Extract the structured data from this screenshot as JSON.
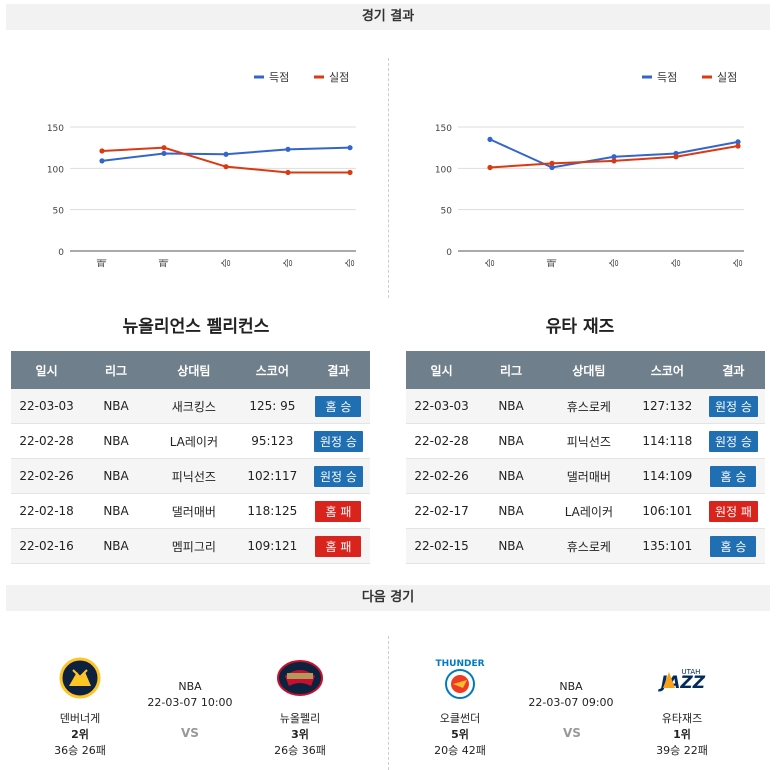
{
  "sections": {
    "results_title": "경기 결과",
    "next_title": "다음 경기"
  },
  "legend": {
    "scored": "득점",
    "conceded": "실점"
  },
  "colors": {
    "scored": "#3366cc",
    "conceded": "#dc3912",
    "win": "#1f6fb2",
    "loss": "#d9231d"
  },
  "chart_data": [
    {
      "type": "line",
      "categories": [
        "패",
        "패",
        "승",
        "승",
        "승"
      ],
      "series": [
        {
          "name": "득점",
          "values": [
            109,
            118,
            117,
            123,
            125
          ]
        },
        {
          "name": "실점",
          "values": [
            121,
            125,
            102,
            95,
            95
          ]
        }
      ],
      "y_ticks": [
        0,
        50,
        100,
        150
      ],
      "ylim": [
        0,
        150
      ],
      "grid": true,
      "legend": "top-right"
    },
    {
      "type": "line",
      "categories": [
        "승",
        "패",
        "승",
        "승",
        "승"
      ],
      "series": [
        {
          "name": "득점",
          "values": [
            135,
            101,
            114,
            118,
            132
          ]
        },
        {
          "name": "실점",
          "values": [
            101,
            106,
            109,
            114,
            127
          ]
        }
      ],
      "y_ticks": [
        0,
        50,
        100,
        150
      ],
      "ylim": [
        0,
        150
      ],
      "grid": true,
      "legend": "top-right"
    }
  ],
  "table_headers": [
    "일시",
    "리그",
    "상대팀",
    "스코어",
    "결과"
  ],
  "teams": [
    {
      "name": "뉴올리언스 펠리컨스",
      "games": [
        {
          "date": "22-03-03",
          "league": "NBA",
          "opponent": "새크킹스",
          "score": "125: 95",
          "result": "홈 승",
          "kind": "win"
        },
        {
          "date": "22-02-28",
          "league": "NBA",
          "opponent": "LA레이커",
          "score": "95:123",
          "result": "원정 승",
          "kind": "win"
        },
        {
          "date": "22-02-26",
          "league": "NBA",
          "opponent": "피닉선즈",
          "score": "102:117",
          "result": "원정 승",
          "kind": "win"
        },
        {
          "date": "22-02-18",
          "league": "NBA",
          "opponent": "댈러매버",
          "score": "118:125",
          "result": "홈 패",
          "kind": "loss"
        },
        {
          "date": "22-02-16",
          "league": "NBA",
          "opponent": "멤피그리",
          "score": "109:121",
          "result": "홈 패",
          "kind": "loss"
        }
      ]
    },
    {
      "name": "유타 재즈",
      "games": [
        {
          "date": "22-03-03",
          "league": "NBA",
          "opponent": "휴스로케",
          "score": "127:132",
          "result": "원정 승",
          "kind": "win"
        },
        {
          "date": "22-02-28",
          "league": "NBA",
          "opponent": "피닉선즈",
          "score": "114:118",
          "result": "원정 승",
          "kind": "win"
        },
        {
          "date": "22-02-26",
          "league": "NBA",
          "opponent": "댈러매버",
          "score": "114:109",
          "result": "홈 승",
          "kind": "win"
        },
        {
          "date": "22-02-17",
          "league": "NBA",
          "opponent": "LA레이커",
          "score": "106:101",
          "result": "원정 패",
          "kind": "loss"
        },
        {
          "date": "22-02-15",
          "league": "NBA",
          "opponent": "휴스로케",
          "score": "135:101",
          "result": "홈 승",
          "kind": "win"
        }
      ]
    }
  ],
  "next_games": [
    {
      "league": "NBA",
      "datetime": "22-03-07 10:00",
      "vs": "VS",
      "home": {
        "name": "덴버너게",
        "rank": "2위",
        "record": "36승 26패",
        "logo": "nuggets-logo"
      },
      "away": {
        "name": "뉴올펠리",
        "rank": "3위",
        "record": "26승 36패",
        "logo": "pelicans-logo"
      }
    },
    {
      "league": "NBA",
      "datetime": "22-03-07 09:00",
      "vs": "VS",
      "home": {
        "name": "오클썬더",
        "rank": "5위",
        "record": "20승 42패",
        "logo": "thunder-logo"
      },
      "away": {
        "name": "유타재즈",
        "rank": "1위",
        "record": "39승 22패",
        "logo": "jazz-logo"
      }
    }
  ]
}
